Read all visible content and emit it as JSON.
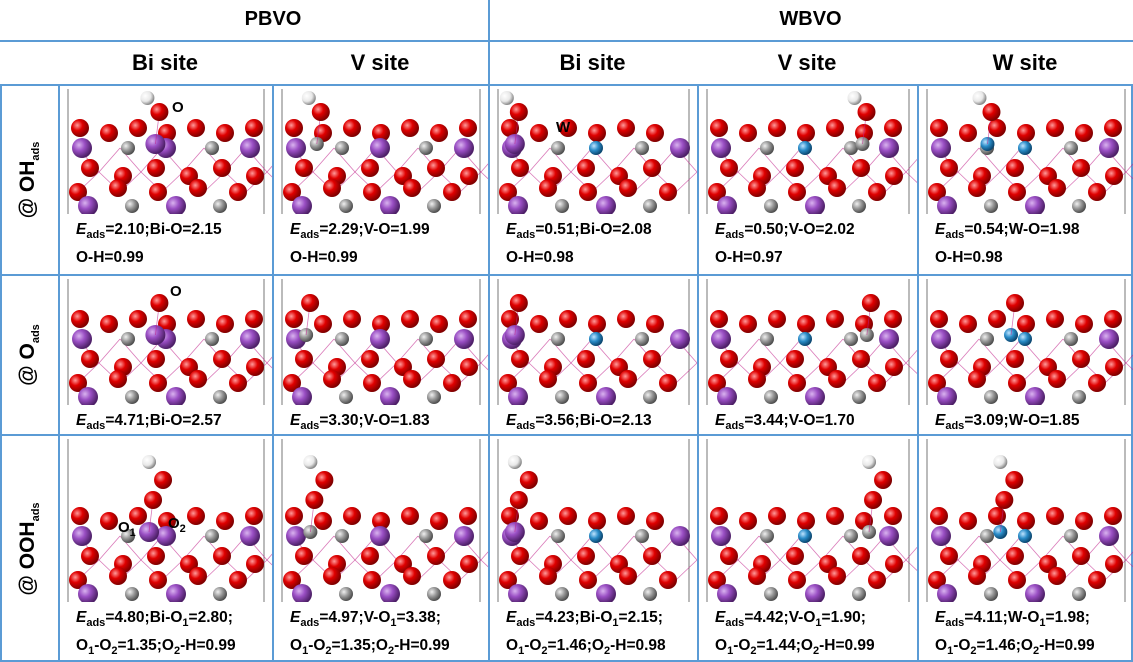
{
  "header": {
    "groups": [
      "PBVO",
      "WBVO"
    ],
    "columns": [
      "Bi site",
      "V site",
      "Bi site",
      "V site",
      "W site"
    ]
  },
  "rows": [
    {
      "label": [
        "@ OH",
        "ads"
      ],
      "cells": [
        {
          "annotations": [
            [
              "O"
            ]
          ],
          "lines": [
            [
              "E",
              "ads",
              "=2.10;Bi-O=2.15"
            ],
            [
              "O-H=0.99"
            ]
          ]
        },
        {
          "annotations": [],
          "lines": [
            [
              "E",
              "ads",
              "=2.29;V-O=1.99"
            ],
            [
              "O-H=0.99"
            ]
          ]
        },
        {
          "annotations": [
            [
              "W"
            ]
          ],
          "lines": [
            [
              "E",
              "ads",
              "=0.51;Bi-O=2.08"
            ],
            [
              "O-H=0.98"
            ]
          ]
        },
        {
          "annotations": [],
          "lines": [
            [
              "E",
              "ads",
              "=0.50;V-O=2.02"
            ],
            [
              "O-H=0.97"
            ]
          ]
        },
        {
          "annotations": [],
          "lines": [
            [
              "E",
              "ads",
              "=0.54;W-O=1.98"
            ],
            [
              "O-H=0.98"
            ]
          ]
        }
      ]
    },
    {
      "label": [
        "@ O",
        "ads"
      ],
      "cells": [
        {
          "annotations": [
            [
              "O"
            ]
          ],
          "lines": [
            [
              "E",
              "ads",
              "=4.71;Bi-O=2.57"
            ]
          ]
        },
        {
          "annotations": [],
          "lines": [
            [
              "E",
              "ads",
              "=3.30;V-O=1.83"
            ]
          ]
        },
        {
          "annotations": [],
          "lines": [
            [
              "E",
              "ads",
              "=3.56;Bi-O=2.13"
            ]
          ]
        },
        {
          "annotations": [],
          "lines": [
            [
              "E",
              "ads",
              "=3.44;V-O=1.70"
            ]
          ]
        },
        {
          "annotations": [],
          "lines": [
            [
              "E",
              "ads",
              "=3.09;W-O=1.85"
            ]
          ]
        }
      ]
    },
    {
      "label": [
        "@ OOH",
        "ads"
      ],
      "cells": [
        {
          "annotations": [
            [
              "O",
              "1"
            ],
            [
              "O",
              "2"
            ]
          ],
          "lines": [
            [
              "E",
              "ads",
              "=4.80;Bi-O",
              "1",
              "=2.80;"
            ],
            [
              "O",
              "1",
              "-O",
              "2",
              "=1.35;O",
              "2",
              "-H=0.99"
            ]
          ]
        },
        {
          "annotations": [],
          "lines": [
            [
              "E",
              "ads",
              "=4.97;V-O",
              "1",
              "=3.38;"
            ],
            [
              "O",
              "1",
              "-O",
              "2",
              "=1.35;O",
              "2",
              "-H=0.99"
            ]
          ]
        },
        {
          "annotations": [],
          "lines": [
            [
              "E",
              "ads",
              "=4.23;Bi-O",
              "1",
              "=2.15;"
            ],
            [
              "O",
              "1",
              "-O",
              "2",
              "=1.46;O",
              "2",
              "-H=0.98"
            ]
          ]
        },
        {
          "annotations": [],
          "lines": [
            [
              "E",
              "ads",
              "=4.42;V-O",
              "1",
              "=1.90;"
            ],
            [
              "O",
              "1",
              "-O",
              "2",
              "=1.44;O",
              "2",
              "-H=0.99"
            ]
          ]
        },
        {
          "annotations": [],
          "lines": [
            [
              "E",
              "ads",
              "=4.11;W-O",
              "1",
              "=1.98;"
            ],
            [
              "O",
              "1",
              "-O",
              "2",
              "=1.46;O",
              "2",
              "-H=0.99"
            ]
          ]
        }
      ]
    }
  ]
}
